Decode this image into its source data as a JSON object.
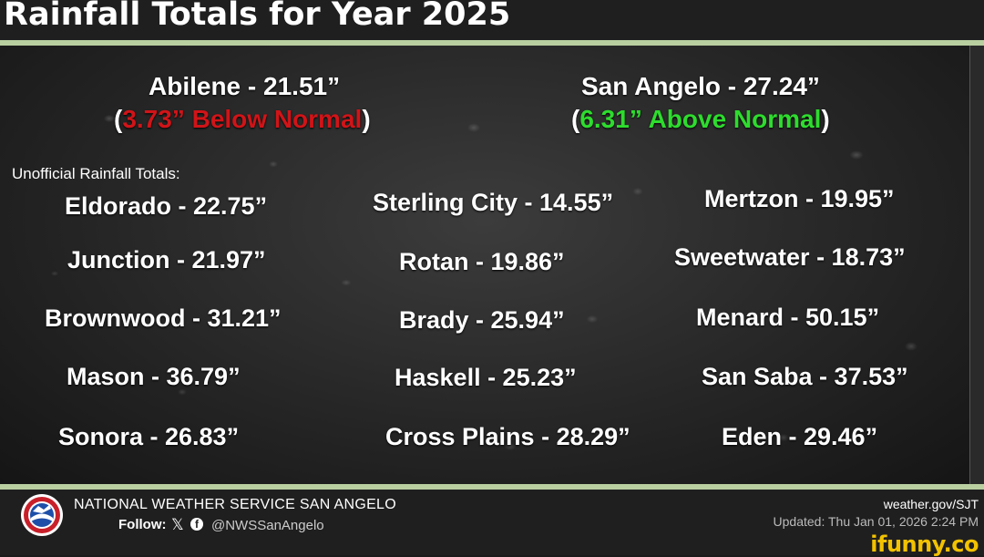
{
  "header": {
    "title": "Rainfall Totals for Year 2025"
  },
  "featured": [
    {
      "station": "Abilene - 21.51”",
      "open": "(",
      "departure": "3.73” Below Normal",
      "close": ")",
      "tone": "below"
    },
    {
      "station": "San Angelo - 27.24”",
      "open": "(",
      "departure": "6.31” Above Normal",
      "close": ")",
      "tone": "above"
    }
  ],
  "unofficial_label": "Unofficial Rainfall Totals:",
  "stations": [
    "Eldorado - 22.75”",
    "Sterling City - 14.55”",
    "Mertzon - 19.95”",
    "Junction - 21.97”",
    "Rotan - 19.86”",
    "Sweetwater - 18.73”",
    "Brownwood - 31.21”",
    "Brady - 25.94”",
    "Menard - 50.15”",
    "Mason - 36.79”",
    "Haskell - 25.23”",
    "San Saba - 37.53”",
    "Sonora - 26.83”",
    "Cross Plains - 28.29”",
    "Eden - 29.46”"
  ],
  "footer": {
    "office": "NATIONAL WEATHER SERVICE SAN ANGELO",
    "follow_label": "Follow:",
    "x_icon": "x-logo-icon",
    "facebook_icon": "facebook-icon",
    "handle": "@NWSSanAngelo",
    "website": "weather.gov/SJT",
    "updated": "Updated: Thu Jan 01, 2026 2:24 PM",
    "logo_icon": "noaa-nws-logo-icon"
  },
  "watermark": "ifunny.co",
  "colors": {
    "below": "#d01418",
    "above": "#2edc2e",
    "rule": "#b9cfa0"
  }
}
